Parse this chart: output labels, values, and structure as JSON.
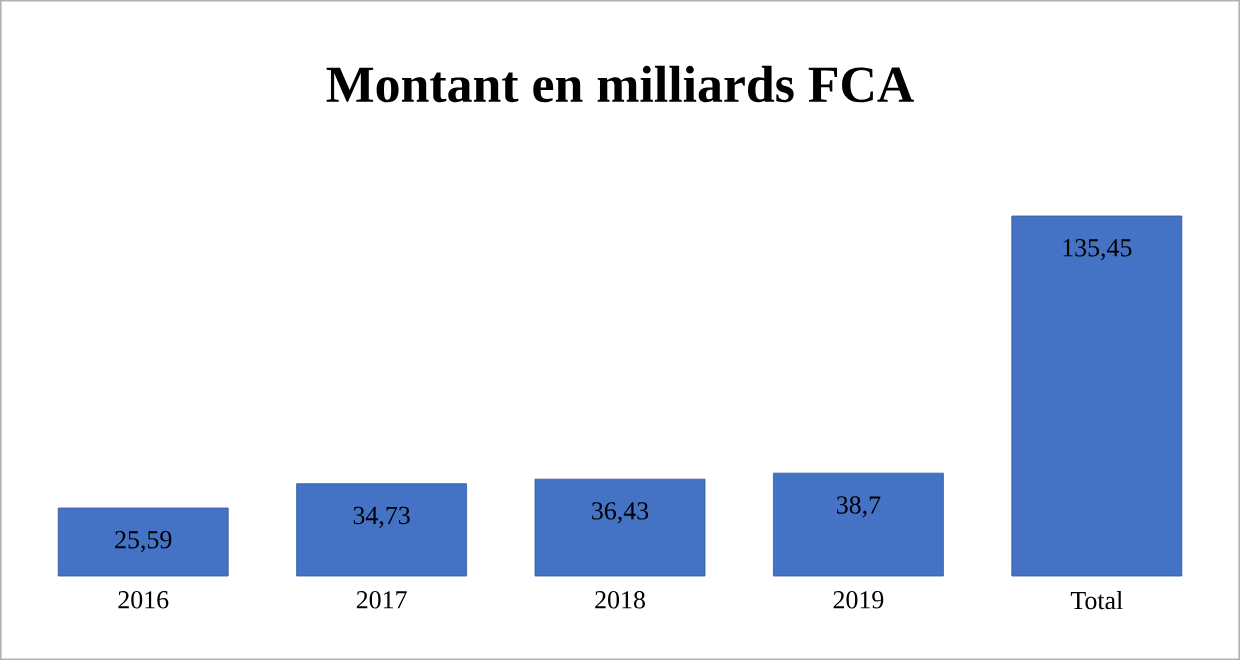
{
  "chart_data": {
    "type": "bar",
    "title": "Montant en milliards FCA",
    "categories": [
      "2016",
      "2017",
      "2018",
      "2019",
      "Total"
    ],
    "values": [
      25.59,
      34.73,
      36.43,
      38.7,
      135.45
    ],
    "value_labels": [
      "25,59",
      "34,73",
      "36,43",
      "38,7",
      "135,45"
    ],
    "color": "#4472c4"
  }
}
